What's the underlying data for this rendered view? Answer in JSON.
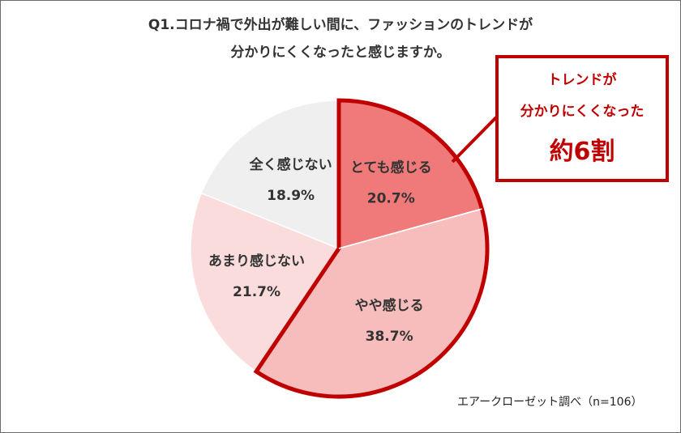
{
  "title": {
    "line1": "Q1.コロナ禍で外出が難しい間に、ファッションのトレンドが",
    "line2": "分かりにくくなったと感じますか。"
  },
  "callout": {
    "line1": "トレンドが",
    "line2": "分かりにくくなった",
    "line3": "約6割"
  },
  "source": "エアークローゼット調べ（n=106）",
  "colors": {
    "highlight_border": "#c00000",
    "slice_1": "#f07a7a",
    "slice_2": "#f7bcbc",
    "slice_3": "#fbdcdc",
    "slice_4": "#efefef",
    "label_text": "#333333"
  },
  "chart_data": {
    "type": "pie",
    "slices": [
      {
        "label": "とても感じる",
        "value": 20.7,
        "display": "20.7%"
      },
      {
        "label": "やや感じる",
        "value": 38.7,
        "display": "38.7%"
      },
      {
        "label": "あまり感じない",
        "value": 21.7,
        "display": "21.7%"
      },
      {
        "label": "全く感じない",
        "value": 18.9,
        "display": "18.9%"
      }
    ],
    "start_angle": "12 o'clock",
    "direction": "clockwise",
    "highlighted_slices": [
      "とても感じる",
      "やや感じる"
    ]
  }
}
